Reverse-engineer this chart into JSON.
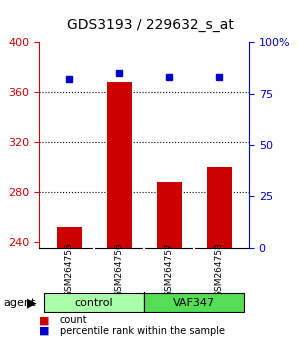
{
  "title": "GDS3193 / 229632_s_at",
  "samples": [
    "GSM264755",
    "GSM264756",
    "GSM264757",
    "GSM264758"
  ],
  "counts": [
    252,
    368,
    288,
    300
  ],
  "percentiles": [
    82,
    85,
    83,
    83
  ],
  "ylim_left": [
    235,
    400
  ],
  "ylim_right": [
    0,
    100
  ],
  "yticks_left": [
    240,
    280,
    320,
    360,
    400
  ],
  "yticks_right": [
    0,
    25,
    50,
    75,
    100
  ],
  "yticklabels_right": [
    "0",
    "25",
    "50",
    "75",
    "100%"
  ],
  "bar_color": "#cc0000",
  "dot_color": "#0000cc",
  "bar_bottom": 235,
  "groups": [
    {
      "label": "control",
      "indices": [
        0,
        1
      ],
      "color": "#aaffaa"
    },
    {
      "label": "VAF347",
      "indices": [
        2,
        3
      ],
      "color": "#55dd55"
    }
  ],
  "group_label_prefix": "agent",
  "legend_items": [
    {
      "color": "#cc0000",
      "label": "count"
    },
    {
      "color": "#0000cc",
      "label": "percentile rank within the sample"
    }
  ],
  "grid_color": "#000000",
  "background_color": "#ffffff",
  "plot_bg": "#ffffff",
  "left_axis_color": "#cc0000",
  "right_axis_color": "#0000cc"
}
